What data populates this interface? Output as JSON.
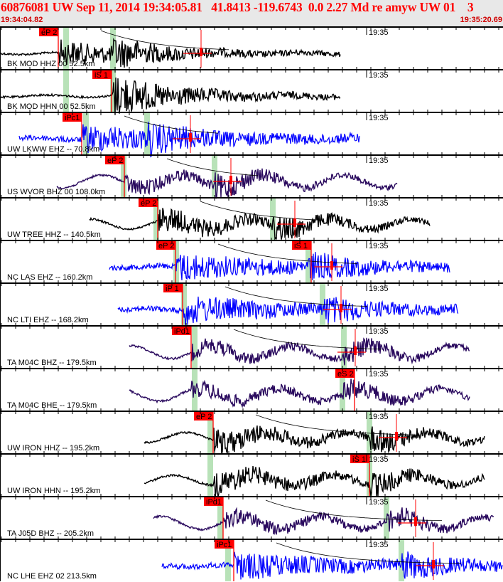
{
  "header": {
    "title": "60876081 UW Sep 11, 2014 19:34:05.81   41.8413 -119.6743  0.0 2.27 Md re amyw UW 01    3",
    "start_time": "19:34:04.82",
    "end_time": "19:35:20.69"
  },
  "time_mark": "19:35",
  "colors": {
    "pick": "#ff0000",
    "window": "#b8e2b8",
    "black": "#000000",
    "blue": "#0000ff",
    "navy": "#2a0a5e"
  },
  "traces": [
    {
      "label": "BK MOD HHZ 00 52.5km",
      "color": "black",
      "phase": "eP 2"
    },
    {
      "label": "BK MOD HHN 00 52.5km",
      "color": "black",
      "phase": "iS 1"
    },
    {
      "label": "UW LKWW EHZ -- 70.8km",
      "color": "blue",
      "phase": "iPc1"
    },
    {
      "label": "US WVOR BHZ 00 108.0km",
      "color": "navy",
      "phase": "eP 2"
    },
    {
      "label": "UW TREE HHZ -- 140.5km",
      "color": "black",
      "phase": "eP 2"
    },
    {
      "label": "NC LAS EHZ -- 160.2km",
      "color": "blue",
      "phase": "eP 2",
      "phase2": "iS 1"
    },
    {
      "label": "NC LTI EHZ -- 168.2km",
      "color": "blue",
      "phase": "iP 1"
    },
    {
      "label": "TA M04C BHZ -- 179.5km",
      "color": "navy",
      "phase": "iPd1"
    },
    {
      "label": "TA M04C BHE -- 179.5km",
      "color": "navy",
      "phase": "eS 2"
    },
    {
      "label": "UW IRON HHZ -- 195.2km",
      "color": "black",
      "phase": "eP 2"
    },
    {
      "label": "UW IRON HHN -- 195.2km",
      "color": "black",
      "phase": "iS 1"
    },
    {
      "label": "TA J05D BHZ -- 205.2km",
      "color": "navy",
      "phase": "iPd1"
    },
    {
      "label": "NC LHE EHZ 02 213.5km",
      "color": "blue",
      "phase": "iPc1"
    }
  ]
}
